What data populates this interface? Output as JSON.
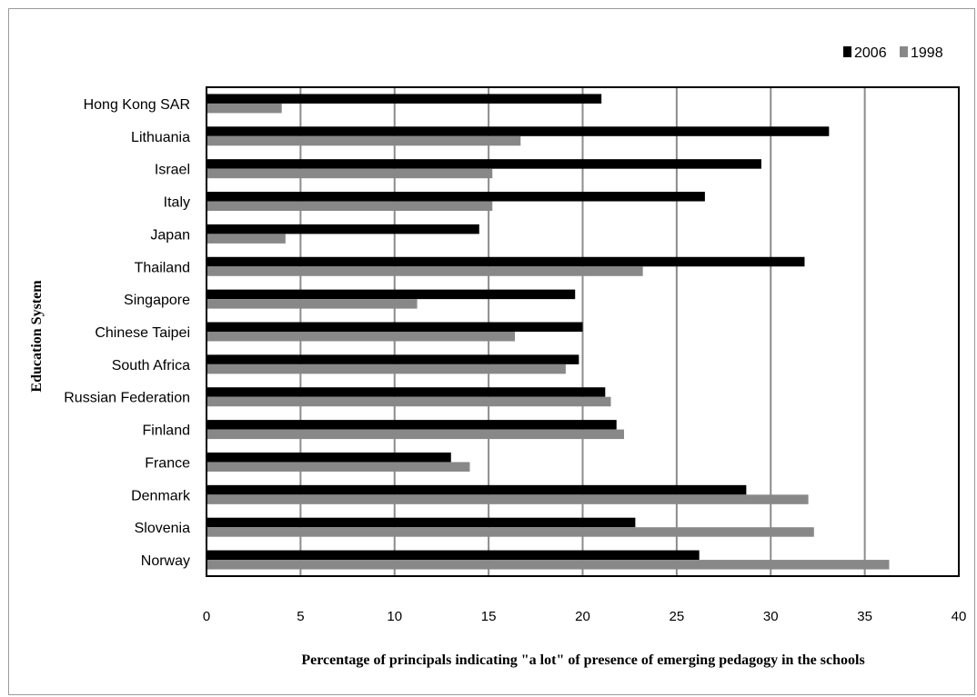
{
  "chart_data": {
    "type": "bar",
    "orientation": "horizontal",
    "title": "",
    "xlabel": "Percentage of principals indicating \"a lot\" of presence of emerging pedagogy in the schools",
    "ylabel": "Education System",
    "xlim": [
      0,
      40
    ],
    "xticks": [
      "0",
      "5",
      "10",
      "15",
      "20",
      "25",
      "30",
      "35",
      "40"
    ],
    "grid": "vertical",
    "legend_position": "top-right",
    "categories": [
      "Hong Kong SAR",
      "Lithuania",
      "Israel",
      "Italy",
      "Japan",
      "Thailand",
      "Singapore",
      "Chinese Taipei",
      "South Africa",
      "Russian Federation",
      "Finland",
      "France",
      "Denmark",
      "Slovenia",
      "Norway"
    ],
    "series": [
      {
        "name": "2006",
        "color": "#000000",
        "values": [
          21.0,
          33.1,
          29.5,
          26.5,
          14.5,
          31.8,
          19.6,
          20.0,
          19.8,
          21.2,
          21.8,
          13.0,
          28.7,
          22.8,
          26.2
        ]
      },
      {
        "name": "1998",
        "color": "#888888",
        "values": [
          4.0,
          16.7,
          15.2,
          15.2,
          4.2,
          23.2,
          11.2,
          16.4,
          19.1,
          21.5,
          22.2,
          14.0,
          32.0,
          32.3,
          36.3
        ]
      }
    ]
  }
}
